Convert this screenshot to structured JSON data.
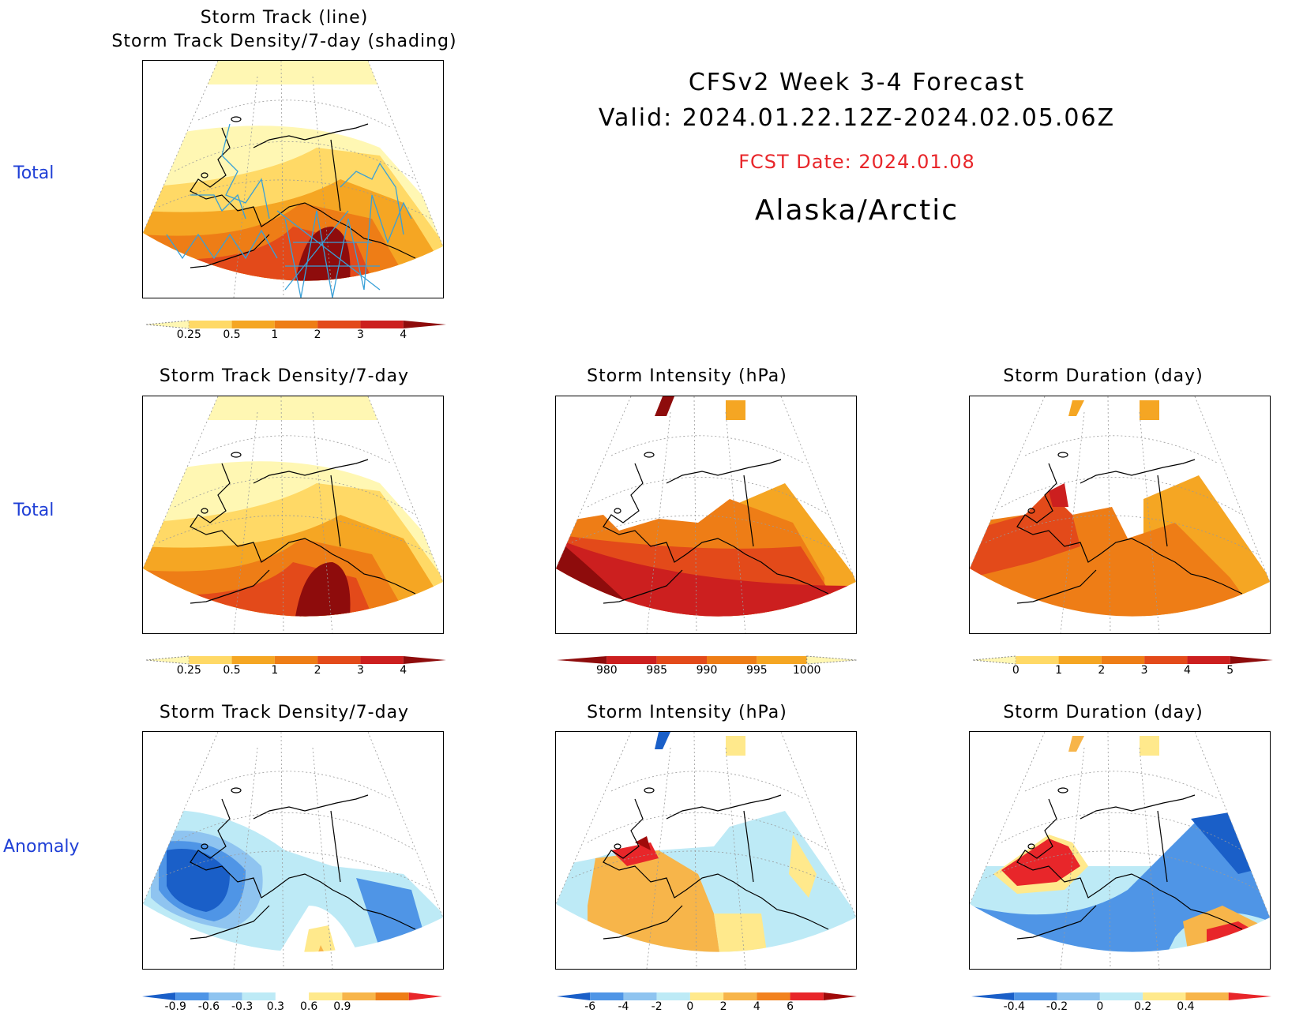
{
  "header": {
    "title": "CFSv2 Week 3-4 Forecast",
    "valid": "Valid: 2024.01.22.12Z-2024.02.05.06Z",
    "fcst_date": "FCST Date: 2024.01.08",
    "region": "Alaska/Arctic",
    "fcst_color": "#e8262a"
  },
  "row_labels": {
    "row1": "Total",
    "row2": "Total",
    "row3": "Anomaly"
  },
  "panels": {
    "p1": {
      "title_line1": "Storm Track (line)",
      "title_line2": "Storm Track Density/7-day (shading)"
    },
    "p2": {
      "title": "Storm Track Density/7-day"
    },
    "p3": {
      "title": "Storm Intensity (hPa)"
    },
    "p4": {
      "title": "Storm Duration (day)"
    },
    "p5": {
      "title": "Storm Track Density/7-day"
    },
    "p6": {
      "title": "Storm Intensity (hPa)"
    },
    "p7": {
      "title": "Storm Duration (day)"
    }
  },
  "colorbars": {
    "density": {
      "labels": [
        "0.25",
        "0.5",
        "1",
        "2",
        "3",
        "4"
      ],
      "colors": [
        "#fff7b3",
        "#ffd966",
        "#f5a623",
        "#ee7d16",
        "#e34a1a",
        "#cc1f1f",
        "#8e0c0c"
      ]
    },
    "intensity": {
      "labels": [
        "980",
        "985",
        "990",
        "995",
        "1000"
      ],
      "colors": [
        "#8e0c0c",
        "#cc1f1f",
        "#e34a1a",
        "#ee7d16",
        "#f5a623",
        "#fff7b3"
      ]
    },
    "duration": {
      "labels": [
        "0",
        "1",
        "2",
        "3",
        "4",
        "5"
      ],
      "colors": [
        "#fff7b3",
        "#ffd966",
        "#f5a623",
        "#ee7d16",
        "#e34a1a",
        "#cc1f1f",
        "#8e0c0c"
      ]
    },
    "density_anom": {
      "labels": [
        "-0.9",
        "-0.6",
        "-0.3",
        "0.3",
        "0.6",
        "0.9"
      ],
      "colors": [
        "#1a5fc8",
        "#4f95e6",
        "#8fc4f0",
        "#bdeaf6",
        "#ffffff",
        "#ffe98c",
        "#f7b54a",
        "#ee7d16",
        "#e8262a"
      ]
    },
    "intensity_anom": {
      "labels": [
        "-6",
        "-4",
        "-2",
        "0",
        "2",
        "4",
        "6"
      ],
      "colors": [
        "#1a5fc8",
        "#4f95e6",
        "#8fc4f0",
        "#bdeaf6",
        "#ffe98c",
        "#f7b54a",
        "#f2821f",
        "#e8262a",
        "#a00a0a"
      ]
    },
    "duration_anom": {
      "labels": [
        "-0.4",
        "-0.2",
        "0",
        "0.2",
        "0.4"
      ],
      "colors": [
        "#1a5fc8",
        "#4f95e6",
        "#8fc4f0",
        "#bdeaf6",
        "#ffe98c",
        "#f7b54a",
        "#e8262a"
      ]
    }
  }
}
